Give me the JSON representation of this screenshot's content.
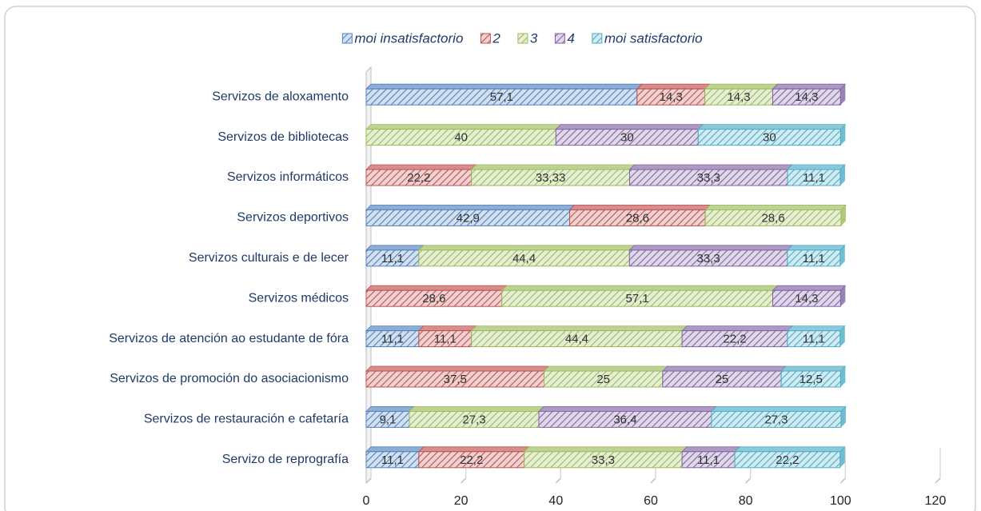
{
  "chart_data": {
    "type": "stacked-barh",
    "categories": [
      "Servizos de aloxamento",
      "Servizos de bibliotecas",
      "Servizos informáticos",
      "Servizos deportivos",
      "Servizos culturais e de lecer",
      "Servizos médicos",
      "Servizos de atención ao estudante de fóra",
      "Servizos de promoción do asociacionismo",
      "Servizos de restauración e cafetaría",
      "Servizo de reprografía"
    ],
    "series": [
      {
        "name": "moi insatisfactorio",
        "color": "#4f81bd",
        "values": [
          57.1,
          null,
          null,
          42.9,
          11.1,
          null,
          11.1,
          null,
          9.1,
          11.1
        ],
        "value_labels": [
          "57,1",
          null,
          null,
          "42,9",
          "11,1",
          null,
          "11,1",
          null,
          "9,1",
          "11,1"
        ]
      },
      {
        "name": "2",
        "color": "#c0504d",
        "values": [
          14.3,
          null,
          22.2,
          28.6,
          null,
          28.6,
          11.1,
          37.5,
          null,
          22.2
        ],
        "value_labels": [
          "14,3",
          null,
          "22,2",
          "28,6",
          null,
          "28,6",
          "11,1",
          "37,5",
          null,
          "22,2"
        ]
      },
      {
        "name": "3",
        "color": "#9bbb59",
        "values": [
          14.3,
          40,
          33.33,
          28.6,
          44.4,
          57.1,
          44.4,
          25,
          27.3,
          33.3
        ],
        "value_labels": [
          "14,3",
          "40",
          "33,33",
          "28,6",
          "44,4",
          "57,1",
          "44,4",
          "25",
          "27,3",
          "33,3"
        ]
      },
      {
        "name": "4",
        "color": "#8064a2",
        "values": [
          14.3,
          30,
          33.3,
          null,
          33.3,
          14.3,
          22.2,
          25,
          36.4,
          11.1
        ],
        "value_labels": [
          "14,3",
          "30",
          "33,3",
          null,
          "33,3",
          "14,3",
          "22,2",
          "25",
          "36,4",
          "11,1"
        ]
      },
      {
        "name": "moi satisfactorio",
        "color": "#4bacc6",
        "values": [
          null,
          30,
          11.1,
          null,
          11.1,
          null,
          11.1,
          12.5,
          27.3,
          22.2
        ],
        "value_labels": [
          null,
          "30",
          "11,1",
          null,
          "11,1",
          null,
          "11,1",
          "12,5",
          "27,3",
          "22,2"
        ]
      }
    ],
    "xlim": [
      0,
      120
    ],
    "xticks": [
      0,
      20,
      40,
      60,
      80,
      100,
      120
    ],
    "legend": "top"
  }
}
